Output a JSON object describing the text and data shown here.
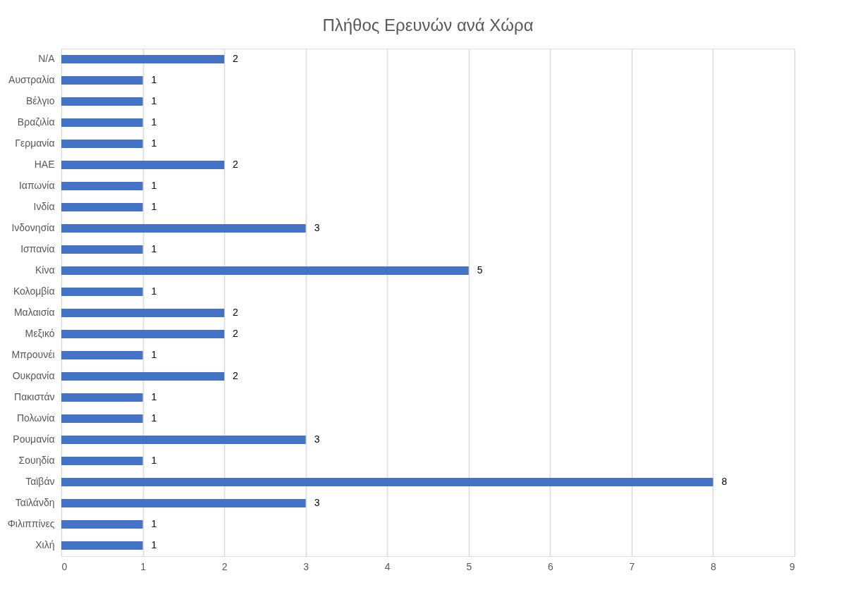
{
  "chart_data": {
    "type": "bar",
    "orientation": "horizontal",
    "title": "Πλήθος Ερευνών ανά Χώρα",
    "categories": [
      "N/A",
      "Αυστραλία",
      "Βέλγιο",
      "Βραζιλία",
      "Γερμανία",
      "ΗΑΕ",
      "Ιαπωνία",
      "Ινδία",
      "Ινδονησία",
      "Ισπανία",
      "Κίνα",
      "Κολομβία",
      "Μαλαισία",
      "Μεξικό",
      "Μπρουνέι",
      "Ουκρανία",
      "Πακιστάν",
      "Πολωνία",
      "Ρουμανία",
      "Σουηδία",
      "Ταϊβάν",
      "Ταϊλάνδη",
      "Φιλιππίνες",
      "Χιλή"
    ],
    "values": [
      2,
      1,
      1,
      1,
      1,
      2,
      1,
      1,
      3,
      1,
      5,
      1,
      2,
      2,
      1,
      2,
      1,
      1,
      3,
      1,
      8,
      3,
      1,
      1
    ],
    "color": "#4472c4",
    "xlim": [
      0,
      9
    ],
    "xticks": [
      0,
      1,
      2,
      3,
      4,
      5,
      6,
      7,
      8,
      9
    ],
    "grid": "x",
    "data_labels": true
  }
}
